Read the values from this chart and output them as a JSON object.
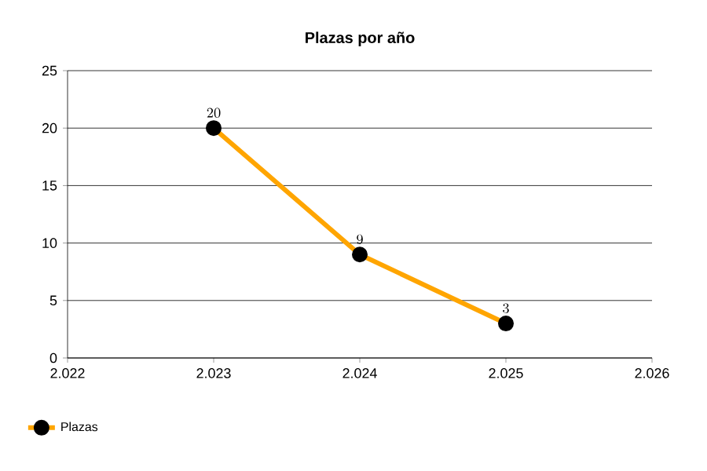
{
  "chart_data": {
    "type": "line",
    "title": "Plazas por año",
    "x": [
      2023,
      2024,
      2025
    ],
    "series": [
      {
        "name": "Plazas",
        "color": "#ffa500",
        "values": [
          20,
          9,
          3
        ]
      }
    ],
    "xlim": [
      2022,
      2026
    ],
    "xticks": [
      {
        "value": 2022,
        "label": "2.022"
      },
      {
        "value": 2023,
        "label": "2.023"
      },
      {
        "value": 2024,
        "label": "2.024"
      },
      {
        "value": 2025,
        "label": "2.025"
      },
      {
        "value": 2026,
        "label": "2.026"
      }
    ],
    "ylim": [
      0,
      25
    ],
    "yticks": [
      0,
      5,
      10,
      15,
      20,
      25
    ],
    "grid": "y",
    "legend": "bottom",
    "marker": "circle",
    "line_style": "solid",
    "data_labels": true
  }
}
